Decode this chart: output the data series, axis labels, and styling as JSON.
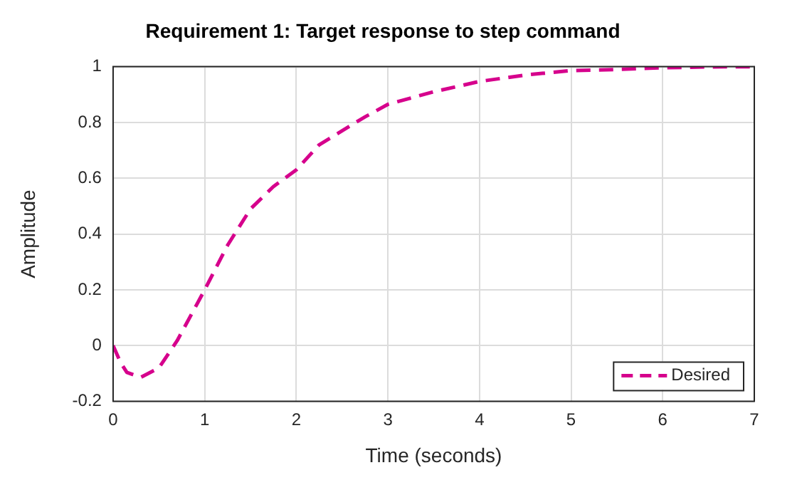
{
  "chart_data": {
    "type": "line",
    "title": "Requirement 1: Target response to step command",
    "xlabel": "Time (seconds)",
    "ylabel": "Amplitude",
    "xlim": [
      0,
      7
    ],
    "xticks": [
      0,
      1,
      2,
      3,
      4,
      5,
      6,
      7
    ],
    "ylim": [
      -0.2,
      1
    ],
    "yticks": [
      -0.2,
      0,
      0.2,
      0.4,
      0.6,
      0.8,
      1
    ],
    "grid": true,
    "legend": "bottom right",
    "line_style": "dashed",
    "marker": "none",
    "series": [
      {
        "name": "Desired",
        "color": "#d6008c",
        "x": [
          0,
          0.08,
          0.15,
          0.3,
          0.5,
          0.7,
          1,
          1.25,
          1.5,
          1.75,
          2,
          2.25,
          2.5,
          2.75,
          3,
          3.5,
          4,
          4.5,
          5,
          5.5,
          6,
          6.5,
          7
        ],
        "values": [
          0,
          -0.06,
          -0.096,
          -0.114,
          -0.08,
          0.018,
          0.2,
          0.36,
          0.49,
          0.57,
          0.63,
          0.72,
          0.77,
          0.82,
          0.865,
          0.91,
          0.947,
          0.97,
          0.986,
          0.99,
          0.996,
          0.999,
          1
        ]
      }
    ]
  }
}
